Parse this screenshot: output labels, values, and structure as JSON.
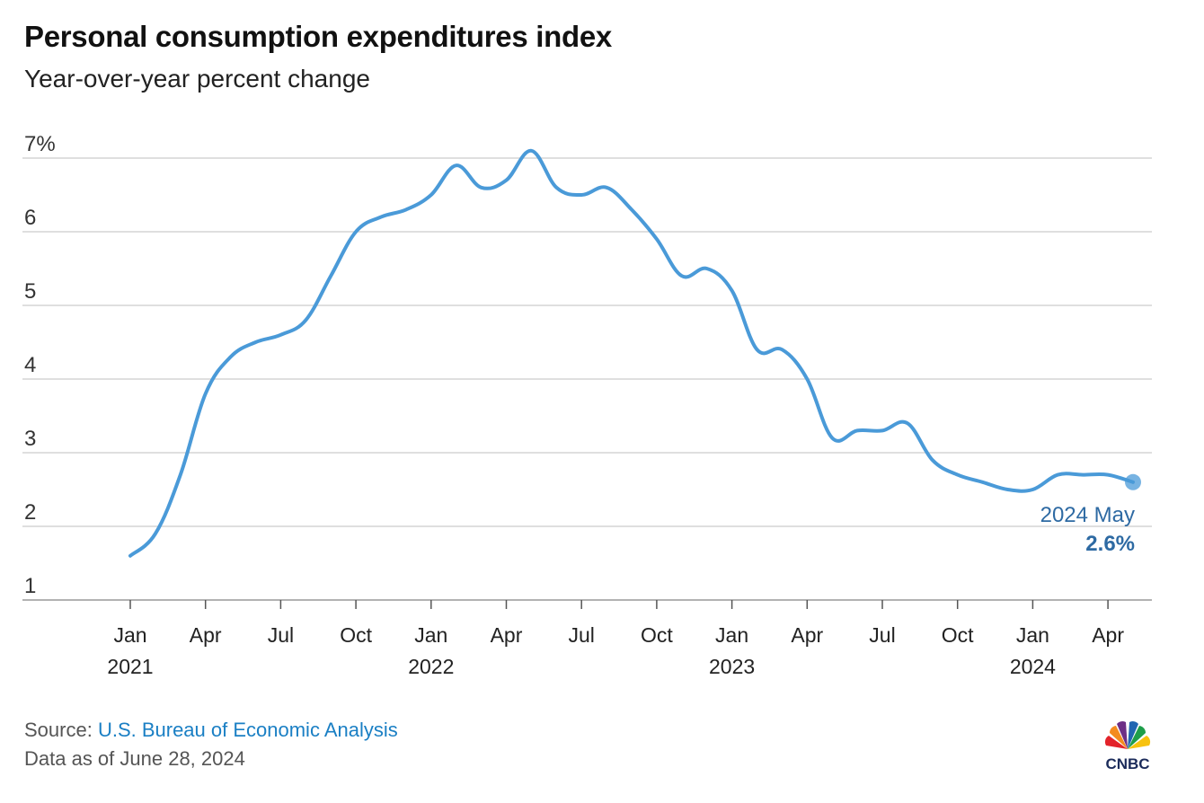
{
  "header": {
    "title": "Personal consumption expenditures index",
    "subtitle": "Year-over-year percent change"
  },
  "footer": {
    "source_prefix": "Source: ",
    "source_name": "U.S. Bureau of Economic Analysis",
    "data_as_of": "Data as of June 28, 2024",
    "brand": "CNBC"
  },
  "colors": {
    "line": "#4a9ad8",
    "grid": "#cccccc",
    "annotation": "#2e6aa3",
    "source_link": "#1a7fc4"
  },
  "chart_data": {
    "type": "line",
    "title": "Personal consumption expenditures index",
    "subtitle": "Year-over-year percent change",
    "ylim": [
      1,
      7
    ],
    "y_ticks": [
      1,
      2,
      3,
      4,
      5,
      6,
      7
    ],
    "y_tick_labels": [
      "1",
      "2",
      "3",
      "4",
      "5",
      "6",
      "7%"
    ],
    "x_ticks": [
      {
        "month": "Jan",
        "year": "2021"
      },
      {
        "month": "Apr",
        "year": ""
      },
      {
        "month": "Jul",
        "year": ""
      },
      {
        "month": "Oct",
        "year": ""
      },
      {
        "month": "Jan",
        "year": "2022"
      },
      {
        "month": "Apr",
        "year": ""
      },
      {
        "month": "Jul",
        "year": ""
      },
      {
        "month": "Oct",
        "year": ""
      },
      {
        "month": "Jan",
        "year": "2023"
      },
      {
        "month": "Apr",
        "year": ""
      },
      {
        "month": "Jul",
        "year": ""
      },
      {
        "month": "Oct",
        "year": ""
      },
      {
        "month": "Jan",
        "year": "2024"
      },
      {
        "month": "Apr",
        "year": ""
      }
    ],
    "grid": true,
    "series": [
      {
        "x": [
          "2021-01",
          "2021-02",
          "2021-03",
          "2021-04",
          "2021-05",
          "2021-06",
          "2021-07",
          "2021-08",
          "2021-09",
          "2021-10",
          "2021-11",
          "2021-12",
          "2022-01",
          "2022-02",
          "2022-03",
          "2022-04",
          "2022-05",
          "2022-06",
          "2022-07",
          "2022-08",
          "2022-09",
          "2022-10",
          "2022-11",
          "2022-12",
          "2023-01",
          "2023-02",
          "2023-03",
          "2023-04",
          "2023-05",
          "2023-06",
          "2023-07",
          "2023-08",
          "2023-09",
          "2023-10",
          "2023-11",
          "2023-12",
          "2024-01",
          "2024-02",
          "2024-03",
          "2024-04",
          "2024-05"
        ],
        "values": [
          1.6,
          1.9,
          2.7,
          3.8,
          4.3,
          4.5,
          4.6,
          4.8,
          5.4,
          6.0,
          6.2,
          6.3,
          6.5,
          6.9,
          6.6,
          6.7,
          7.1,
          6.6,
          6.5,
          6.6,
          6.3,
          5.9,
          5.4,
          5.5,
          5.2,
          4.4,
          4.4,
          4.0,
          3.2,
          3.3,
          3.3,
          3.4,
          2.9,
          2.7,
          2.6,
          2.5,
          2.5,
          2.7,
          2.7,
          2.7,
          2.6
        ]
      }
    ],
    "annotation": {
      "label": "2024 May",
      "value_label": "2.6%"
    }
  }
}
